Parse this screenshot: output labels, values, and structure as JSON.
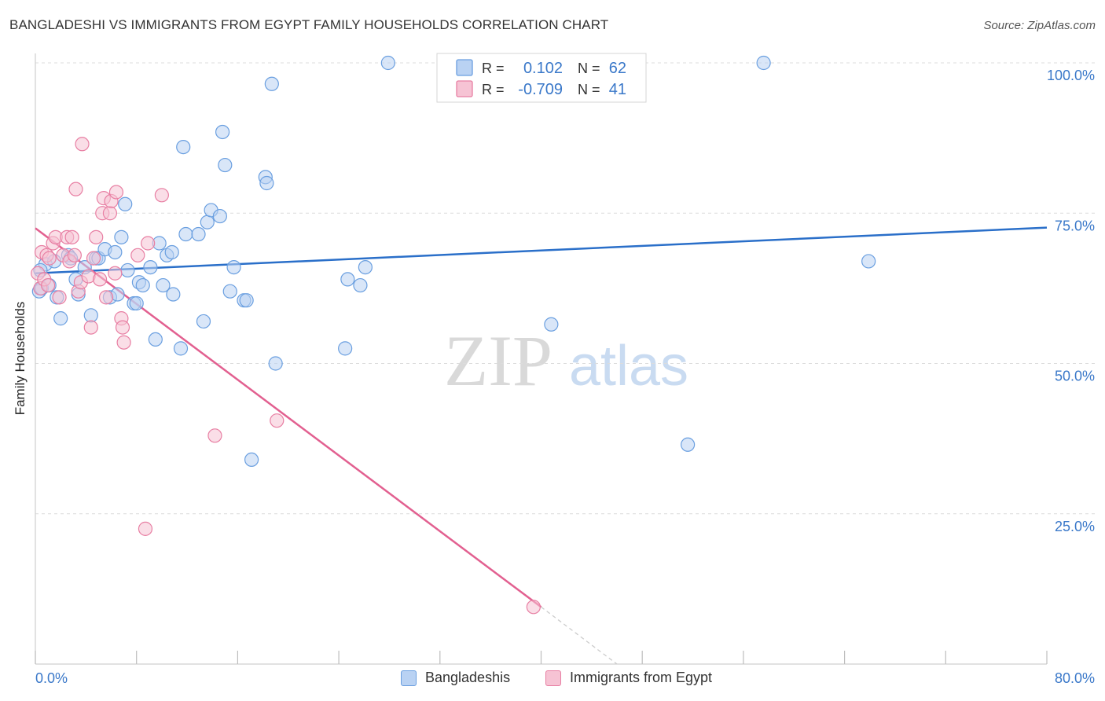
{
  "title": "BANGLADESHI VS IMMIGRANTS FROM EGYPT FAMILY HOUSEHOLDS CORRELATION CHART",
  "source": "Source: ZipAtlas.com",
  "watermark": {
    "zip": "ZIP",
    "atlas": "atlas"
  },
  "colors": {
    "blue": "#6a9fe0",
    "blue_fill": "#b9d2f3",
    "blue_line": "#2a6fc9",
    "pink": "#e87fa3",
    "pink_fill": "#f6c3d4",
    "pink_line": "#e26090",
    "axis_text": "#3a78c9"
  },
  "legend_top": {
    "rows": [
      {
        "r_label": "R =",
        "r_value": "0.102",
        "n_label": "N =",
        "n_value": "62"
      },
      {
        "r_label": "R =",
        "r_value": "-0.709",
        "n_label": "N =",
        "n_value": "41"
      }
    ]
  },
  "legend_bottom": [
    "Bangladeshis",
    "Immigrants from Egypt"
  ],
  "chart_data": {
    "type": "scatter",
    "title": "BANGLADESHI VS IMMIGRANTS FROM EGYPT FAMILY HOUSEHOLDS CORRELATION CHART",
    "xlabel": "",
    "ylabel": "Family Households",
    "xlim": [
      0,
      80
    ],
    "ylim": [
      0,
      100
    ],
    "x_tick_labels": [
      "0.0%",
      "80.0%"
    ],
    "y_tick_labels": [
      {
        "value": 25,
        "label": "25.0%"
      },
      {
        "value": 50,
        "label": "50.0%"
      },
      {
        "value": 75,
        "label": "75.0%"
      },
      {
        "value": 100,
        "label": "100.0%"
      }
    ],
    "grid": true,
    "series": [
      {
        "name": "Bangladeshis",
        "r": 0.102,
        "n": 62,
        "trend": {
          "x": [
            0,
            80
          ],
          "y": [
            65.0,
            72.6
          ]
        },
        "points": [
          [
            0.3,
            62.0
          ],
          [
            0.5,
            62.5
          ],
          [
            0.8,
            66.5
          ],
          [
            1.1,
            63.0
          ],
          [
            1.5,
            67.0
          ],
          [
            1.7,
            61.0
          ],
          [
            2.0,
            57.5
          ],
          [
            2.6,
            68.0
          ],
          [
            2.8,
            67.5
          ],
          [
            3.2,
            64.0
          ],
          [
            3.4,
            61.5
          ],
          [
            3.9,
            66.0
          ],
          [
            4.4,
            58.0
          ],
          [
            4.8,
            67.5
          ],
          [
            5.0,
            67.5
          ],
          [
            5.5,
            69.0
          ],
          [
            5.9,
            61.0
          ],
          [
            6.3,
            68.5
          ],
          [
            6.5,
            61.5
          ],
          [
            6.8,
            71.0
          ],
          [
            7.1,
            76.5
          ],
          [
            7.3,
            65.5
          ],
          [
            7.8,
            60.0
          ],
          [
            8.0,
            60.0
          ],
          [
            8.2,
            63.5
          ],
          [
            8.5,
            63.0
          ],
          [
            9.1,
            66.0
          ],
          [
            9.5,
            54.0
          ],
          [
            9.8,
            70.0
          ],
          [
            10.1,
            63.0
          ],
          [
            10.4,
            68.0
          ],
          [
            10.8,
            68.5
          ],
          [
            10.9,
            61.5
          ],
          [
            11.5,
            52.5
          ],
          [
            11.7,
            86.0
          ],
          [
            11.9,
            71.5
          ],
          [
            12.9,
            71.5
          ],
          [
            13.3,
            57.0
          ],
          [
            13.6,
            73.5
          ],
          [
            13.9,
            75.5
          ],
          [
            14.6,
            74.5
          ],
          [
            14.8,
            88.5
          ],
          [
            15.0,
            83.0
          ],
          [
            15.4,
            62.0
          ],
          [
            15.7,
            66.0
          ],
          [
            16.5,
            60.5
          ],
          [
            16.7,
            60.5
          ],
          [
            17.1,
            34.0
          ],
          [
            18.2,
            81.0
          ],
          [
            18.3,
            80.0
          ],
          [
            18.7,
            96.5
          ],
          [
            19.0,
            50.0
          ],
          [
            24.5,
            52.5
          ],
          [
            24.7,
            64.0
          ],
          [
            25.7,
            63.0
          ],
          [
            26.1,
            66.0
          ],
          [
            27.9,
            100.0
          ],
          [
            40.8,
            56.5
          ],
          [
            51.6,
            36.5
          ],
          [
            57.6,
            100.0
          ],
          [
            65.9,
            67.0
          ],
          [
            0.4,
            65.5
          ]
        ]
      },
      {
        "name": "Immigrants from Egypt",
        "r": -0.709,
        "n": 41,
        "trend": {
          "x": [
            0,
            40.0
          ],
          "y": [
            72.5,
            9.5
          ]
        },
        "trend_dashed": {
          "x": [
            40.0,
            46.0
          ],
          "y": [
            9.5,
            0.0
          ]
        },
        "points": [
          [
            0.2,
            65.0
          ],
          [
            0.4,
            62.5
          ],
          [
            0.5,
            68.5
          ],
          [
            0.7,
            64.0
          ],
          [
            0.9,
            68.0
          ],
          [
            1.1,
            67.5
          ],
          [
            1.4,
            70.0
          ],
          [
            1.6,
            71.0
          ],
          [
            1.9,
            61.0
          ],
          [
            2.2,
            68.0
          ],
          [
            2.5,
            71.0
          ],
          [
            2.7,
            67.0
          ],
          [
            2.9,
            71.0
          ],
          [
            3.1,
            68.0
          ],
          [
            3.2,
            79.0
          ],
          [
            3.4,
            62.0
          ],
          [
            3.6,
            63.5
          ],
          [
            3.7,
            86.5
          ],
          [
            4.2,
            64.5
          ],
          [
            4.4,
            56.0
          ],
          [
            4.6,
            67.5
          ],
          [
            4.8,
            71.0
          ],
          [
            5.1,
            64.0
          ],
          [
            5.3,
            75.0
          ],
          [
            5.4,
            77.5
          ],
          [
            5.6,
            61.0
          ],
          [
            5.9,
            75.0
          ],
          [
            6.0,
            77.0
          ],
          [
            6.3,
            65.0
          ],
          [
            6.4,
            78.5
          ],
          [
            6.8,
            57.5
          ],
          [
            6.9,
            56.0
          ],
          [
            7.0,
            53.5
          ],
          [
            8.1,
            68.0
          ],
          [
            8.7,
            22.5
          ],
          [
            8.9,
            70.0
          ],
          [
            10.0,
            78.0
          ],
          [
            14.2,
            38.0
          ],
          [
            19.1,
            40.5
          ],
          [
            39.4,
            9.5
          ],
          [
            1.0,
            63.0
          ]
        ]
      }
    ]
  }
}
